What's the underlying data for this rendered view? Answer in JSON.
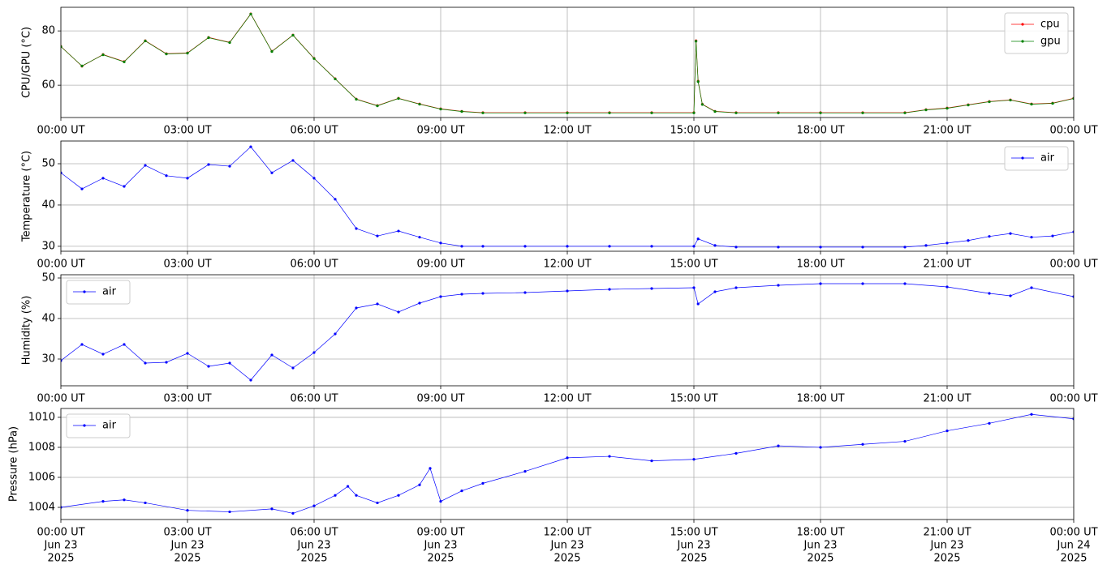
{
  "chart_data": [
    {
      "type": "line",
      "ylabel": "CPU/GPU (°C)",
      "legend": "upper right",
      "grid": true,
      "x": [
        0,
        0.5,
        1,
        1.5,
        2,
        2.5,
        3,
        3.5,
        4,
        4.5,
        5,
        5.5,
        6,
        6.5,
        7,
        7.5,
        8,
        8.5,
        9,
        9.5,
        10,
        11,
        12,
        13,
        14,
        15,
        15.05,
        15.1,
        15.2,
        15.5,
        16,
        17,
        18,
        19,
        20,
        20.5,
        21,
        21.5,
        22,
        22.5,
        23,
        23.5,
        24
      ],
      "series": [
        {
          "name": "cpu",
          "color": "#ff0000",
          "values": [
            74.3,
            67,
            71.3,
            68.7,
            76.4,
            71.6,
            71.9,
            77.6,
            75.8,
            86.3,
            72.5,
            78.5,
            69.9,
            62.4,
            54.9,
            52.5,
            55.2,
            53.1,
            51.3,
            50.4,
            49.9,
            49.9,
            49.9,
            49.9,
            49.9,
            49.9,
            76.4,
            61.5,
            53,
            50.4,
            49.9,
            49.9,
            49.9,
            49.9,
            49.9,
            51,
            51.6,
            52.8,
            54,
            54.6,
            53.1,
            53.4,
            55.2
          ]
        },
        {
          "name": "gpu",
          "color": "#008000",
          "values": [
            74.2,
            67.1,
            71.2,
            68.6,
            76.3,
            71.5,
            71.8,
            77.5,
            75.7,
            86.2,
            72.4,
            78.4,
            69.8,
            62.3,
            54.8,
            52.4,
            55.1,
            53,
            51.2,
            50.3,
            49.8,
            49.8,
            49.8,
            49.8,
            49.8,
            49.8,
            76.2,
            61.3,
            52.9,
            50.3,
            49.8,
            49.8,
            49.8,
            49.8,
            49.8,
            50.9,
            51.5,
            52.7,
            53.9,
            54.5,
            53,
            53.3,
            55.1
          ]
        }
      ],
      "xlim": [
        0,
        24
      ],
      "xticks": [
        {
          "value": 0,
          "label": "00:00 UT"
        },
        {
          "value": 3,
          "label": "03:00 UT"
        },
        {
          "value": 6,
          "label": "06:00 UT"
        },
        {
          "value": 9,
          "label": "09:00 UT"
        },
        {
          "value": 12,
          "label": "12:00 UT"
        },
        {
          "value": 15,
          "label": "15:00 UT"
        },
        {
          "value": 18,
          "label": "18:00 UT"
        },
        {
          "value": 21,
          "label": "21:00 UT"
        },
        {
          "value": 24,
          "label": "00:00 UT"
        }
      ],
      "ylim": [
        48.1,
        88.7
      ],
      "yticks": [
        60,
        80
      ]
    },
    {
      "type": "line",
      "ylabel": "Temperature (°C)",
      "legend": "upper right",
      "grid": true,
      "x": [
        0,
        0.5,
        1,
        1.5,
        2,
        2.5,
        3,
        3.5,
        4,
        4.5,
        5,
        5.5,
        6,
        6.5,
        7,
        7.5,
        8,
        8.5,
        9,
        9.5,
        10,
        11,
        12,
        13,
        14,
        15,
        15.1,
        15.5,
        16,
        17,
        18,
        19,
        20,
        20.5,
        21,
        21.5,
        22,
        22.5,
        23,
        23.5,
        24
      ],
      "series": [
        {
          "name": "air",
          "color": "#0000ff",
          "values": [
            47.8,
            43.9,
            46.5,
            44.5,
            49.6,
            47.1,
            46.5,
            49.8,
            49.4,
            54.1,
            47.8,
            50.8,
            46.5,
            41.4,
            34.3,
            32.5,
            33.7,
            32.2,
            30.8,
            30,
            30,
            30,
            30,
            30,
            30,
            30,
            31.8,
            30.2,
            29.8,
            29.8,
            29.8,
            29.8,
            29.8,
            30.2,
            30.8,
            31.4,
            32.4,
            33.1,
            32.2,
            32.5,
            33.5
          ]
        }
      ],
      "xlim": [
        0,
        24
      ],
      "xticks": [
        {
          "value": 0,
          "label": "00:00 UT"
        },
        {
          "value": 3,
          "label": "03:00 UT"
        },
        {
          "value": 6,
          "label": "06:00 UT"
        },
        {
          "value": 9,
          "label": "09:00 UT"
        },
        {
          "value": 12,
          "label": "12:00 UT"
        },
        {
          "value": 15,
          "label": "15:00 UT"
        },
        {
          "value": 18,
          "label": "18:00 UT"
        },
        {
          "value": 21,
          "label": "21:00 UT"
        },
        {
          "value": 24,
          "label": "00:00 UT"
        }
      ],
      "ylim": [
        28.8,
        55.5
      ],
      "yticks": [
        30,
        40,
        50
      ]
    },
    {
      "type": "line",
      "ylabel": "Humidity (%)",
      "legend": "upper left",
      "grid": true,
      "x": [
        0,
        0.5,
        1,
        1.5,
        2,
        2.5,
        3,
        3.5,
        4,
        4.5,
        5,
        5.5,
        6,
        6.5,
        7,
        7.5,
        8,
        8.5,
        9,
        9.5,
        10,
        11,
        12,
        13,
        14,
        15,
        15.1,
        15.5,
        16,
        17,
        18,
        19,
        20,
        21,
        22,
        22.5,
        23,
        24
      ],
      "series": [
        {
          "name": "air",
          "color": "#0000ff",
          "values": [
            29.6,
            33.6,
            31.2,
            33.6,
            29,
            29.2,
            31.4,
            28.2,
            29,
            24.8,
            31,
            27.8,
            31.6,
            36.2,
            42.6,
            43.6,
            41.6,
            43.8,
            45.4,
            46,
            46.2,
            46.4,
            46.8,
            47.2,
            47.4,
            47.6,
            43.6,
            46.6,
            47.6,
            48.2,
            48.6,
            48.6,
            48.6,
            47.8,
            46.2,
            45.6,
            47.6,
            45.4
          ]
        }
      ],
      "xlim": [
        0,
        24
      ],
      "xticks": [
        {
          "value": 0,
          "label": "00:00 UT"
        },
        {
          "value": 3,
          "label": "03:00 UT"
        },
        {
          "value": 6,
          "label": "06:00 UT"
        },
        {
          "value": 9,
          "label": "09:00 UT"
        },
        {
          "value": 12,
          "label": "12:00 UT"
        },
        {
          "value": 15,
          "label": "15:00 UT"
        },
        {
          "value": 18,
          "label": "18:00 UT"
        },
        {
          "value": 21,
          "label": "21:00 UT"
        },
        {
          "value": 24,
          "label": "00:00 UT"
        }
      ],
      "ylim": [
        23.4,
        50.8
      ],
      "yticks": [
        30,
        40,
        50
      ]
    },
    {
      "type": "line",
      "ylabel": "Pressure (hPa)",
      "legend": "upper left",
      "grid": true,
      "x": [
        0,
        1,
        1.5,
        2,
        3,
        4,
        5,
        5.5,
        6,
        6.5,
        6.8,
        7,
        7.5,
        8,
        8.5,
        8.75,
        9,
        9.5,
        10,
        11,
        12,
        13,
        14,
        15,
        16,
        17,
        18,
        19,
        20,
        21,
        22,
        23,
        24
      ],
      "series": [
        {
          "name": "air",
          "color": "#0000ff",
          "values": [
            1004,
            1004.4,
            1004.5,
            1004.3,
            1003.8,
            1003.7,
            1003.9,
            1003.6,
            1004.1,
            1004.8,
            1005.4,
            1004.8,
            1004.3,
            1004.8,
            1005.5,
            1006.6,
            1004.4,
            1005.1,
            1005.6,
            1006.4,
            1007.3,
            1007.4,
            1007.1,
            1007.2,
            1007.6,
            1008.1,
            1008,
            1008.2,
            1008.4,
            1009.1,
            1009.6,
            1010.2,
            1009.9
          ]
        }
      ],
      "xlim": [
        0,
        24
      ],
      "xticks": [
        {
          "value": 0,
          "label": [
            "00:00 UT",
            "Jun 23",
            "2025"
          ]
        },
        {
          "value": 3,
          "label": [
            "03:00 UT",
            "Jun 23",
            "2025"
          ]
        },
        {
          "value": 6,
          "label": [
            "06:00 UT",
            "Jun 23",
            "2025"
          ]
        },
        {
          "value": 9,
          "label": [
            "09:00 UT",
            "Jun 23",
            "2025"
          ]
        },
        {
          "value": 12,
          "label": [
            "12:00 UT",
            "Jun 23",
            "2025"
          ]
        },
        {
          "value": 15,
          "label": [
            "15:00 UT",
            "Jun 23",
            "2025"
          ]
        },
        {
          "value": 18,
          "label": [
            "18:00 UT",
            "Jun 23",
            "2025"
          ]
        },
        {
          "value": 21,
          "label": [
            "21:00 UT",
            "Jun 23",
            "2025"
          ]
        },
        {
          "value": 24,
          "label": [
            "00:00 UT",
            "Jun 24",
            "2025"
          ]
        }
      ],
      "ylim": [
        1003.19,
        1010.59
      ],
      "yticks": [
        1004,
        1006,
        1008,
        1010
      ]
    }
  ]
}
